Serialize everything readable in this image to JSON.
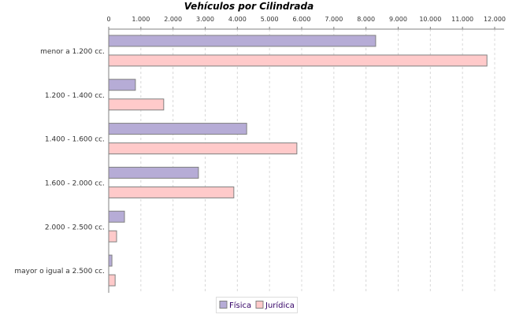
{
  "chart_data": {
    "type": "bar",
    "orientation": "horizontal",
    "title": "Vehículos por Cilindrada",
    "categories": [
      "menor a 1.200 cc.",
      "1.200 - 1.400 cc.",
      "1.400 - 1.600 cc.",
      "1.600 - 2.000 cc.",
      "2.000 - 2.500 cc.",
      "mayor o igual a 2.500 cc."
    ],
    "series": [
      {
        "name": "Física",
        "color": "#b6acd6",
        "values": [
          8300,
          830,
          4290,
          2790,
          490,
          100
        ]
      },
      {
        "name": "Jurídica",
        "color": "#ffcaca",
        "values": [
          11760,
          1710,
          5850,
          3890,
          245,
          200
        ]
      }
    ],
    "xlim": [
      0,
      12300
    ],
    "ticks": [
      0,
      1000,
      2000,
      3000,
      4000,
      5000,
      6000,
      7000,
      8000,
      9000,
      10000,
      11000,
      12000
    ],
    "tick_labels": [
      "0",
      "1.000",
      "2.000",
      "3.000",
      "4.000",
      "5.000",
      "6.000",
      "7.000",
      "8.000",
      "9.000",
      "10.000",
      "11.000",
      "12.000"
    ],
    "axis_position": "top",
    "grid": true,
    "legend_placement": "bottom"
  }
}
